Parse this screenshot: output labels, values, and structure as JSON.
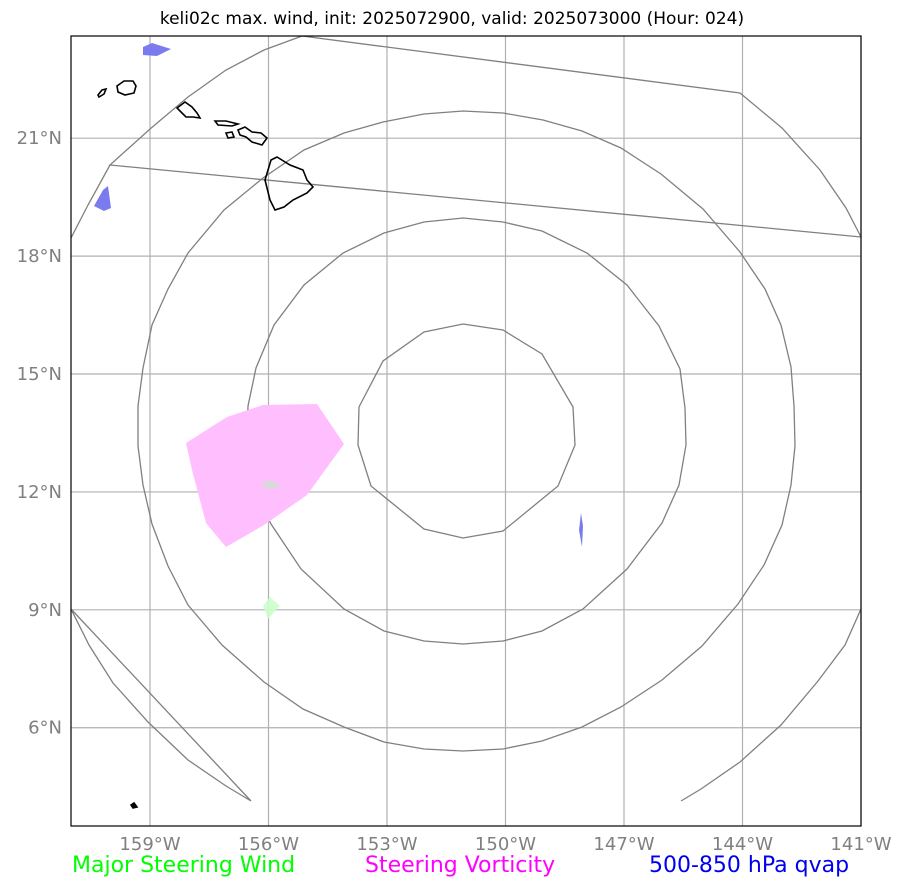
{
  "title": "keli02c max. wind, init: 2025072900, valid: 2025073000 (Hour: 024)",
  "axes": {
    "x_ticks": [
      "159°W",
      "156°W",
      "153°W",
      "150°W",
      "147°W",
      "144°W",
      "141°W"
    ],
    "y_ticks": [
      "21°N",
      "18°N",
      "15°N",
      "12°N",
      "9°N",
      "6°N"
    ],
    "lon_values": [
      -159,
      -156,
      -153,
      -150,
      -147,
      -144,
      -141
    ],
    "lat_values": [
      21,
      18,
      15,
      12,
      9,
      6
    ],
    "lon_range": [
      -161,
      -141
    ],
    "lat_range": [
      3.5,
      23.6
    ],
    "grid": true
  },
  "map_features": {
    "range_rings_center": {
      "lon": -151,
      "lat": 13.6
    },
    "range_ring_count": 5,
    "coastlines": "Hawaiian Islands",
    "steering_vorticity_area": "pink polygon near 155°W 12°N",
    "qvap_areas": "small blue patches",
    "steering_wind_area": "faint green patch near 156°W 9°N"
  },
  "legend": {
    "steering_wind": {
      "label": "Major Steering Wind",
      "color": "#00ff00"
    },
    "steering_vorticity": {
      "label": "Steering Vorticity",
      "color": "#ff00ff"
    },
    "qvap": {
      "label": "500-850 hPa qvap",
      "color": "#0000ee"
    }
  },
  "colors": {
    "vorticity_fill": "#ffbfff",
    "qvap_fill": "#7b7bf0",
    "wind_fill": "#ccffcc",
    "ring_stroke": "#808080",
    "grid_stroke": "#b0b0b0",
    "coast_stroke": "#000000"
  }
}
